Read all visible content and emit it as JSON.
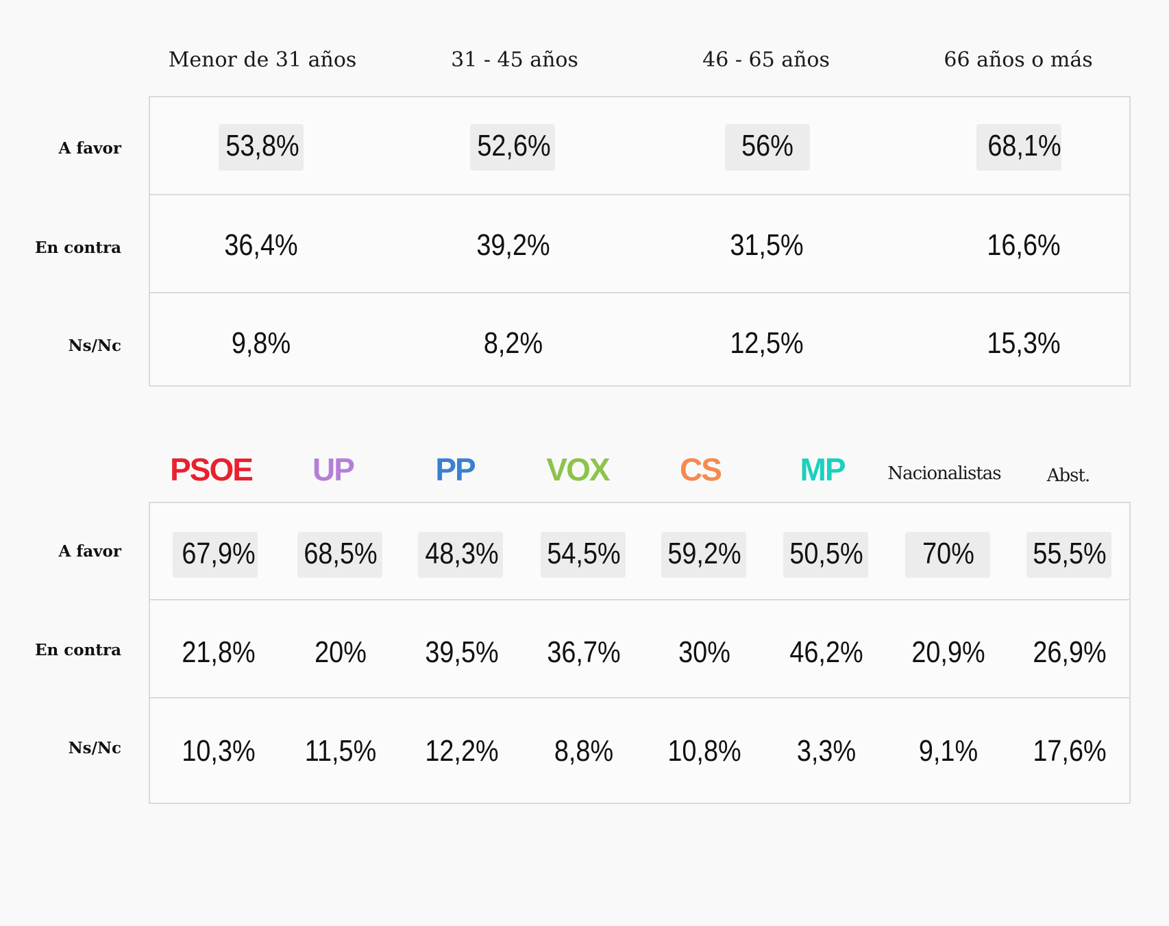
{
  "chart_data": [
    {
      "type": "table",
      "columns": [
        "Menor de 31 años",
        "31 - 45 años",
        "46 - 65 años",
        "66 años o más"
      ],
      "rows": [
        {
          "label": "A favor",
          "values": [
            "53,8%",
            "52,6%",
            "56%",
            "68,1%"
          ]
        },
        {
          "label": "En contra",
          "values": [
            "36,4%",
            "39,2%",
            "31,5%",
            "16,6%"
          ]
        },
        {
          "label": "Ns/Nc",
          "values": [
            "9,8%",
            "8,2%",
            "12,5%",
            "15,3%"
          ]
        }
      ]
    },
    {
      "type": "table",
      "columns": [
        "PSOE",
        "UP",
        "PP",
        "VOX",
        "CS",
        "MP",
        "Nacionalistas",
        "Abst."
      ],
      "column_colors": [
        "#e8212e",
        "#b57ed6",
        "#3b80d0",
        "#8cc34a",
        "#f58a4f",
        "#19d1bd",
        "#1a1a1a",
        "#1a1a1a"
      ],
      "rows": [
        {
          "label": "A favor",
          "values": [
            "67,9%",
            "68,5%",
            "48,3%",
            "54,5%",
            "59,2%",
            "50,5%",
            "70%",
            "55,5%"
          ]
        },
        {
          "label": "En contra",
          "values": [
            "21,8%",
            "20%",
            "39,5%",
            "36,7%",
            "30%",
            "46,2%",
            "20,9%",
            "26,9%"
          ]
        },
        {
          "label": "Ns/Nc",
          "values": [
            "10,3%",
            "11,5%",
            "12,2%",
            "8,8%",
            "10,8%",
            "3,3%",
            "9,1%",
            "17,6%"
          ]
        }
      ],
      "highlighted_row": "A favor"
    }
  ]
}
